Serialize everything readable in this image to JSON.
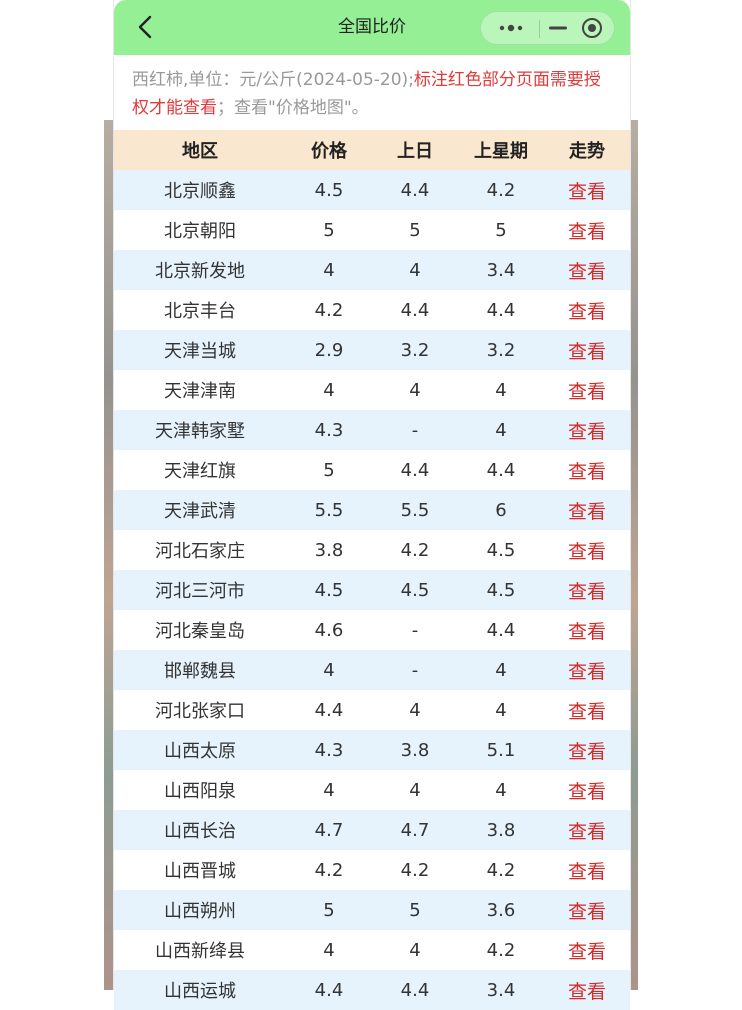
{
  "nav": {
    "title": "全国比价"
  },
  "notice": {
    "gray_text": "西红柿,单位：元/公斤(2024-05-20);",
    "red_text": "标注红色部分页面需要授权才能查看",
    "tail_text": "；查看\"价格地图\"。"
  },
  "icons": {
    "back": "chevron-left-icon",
    "more": "more-dots-icon",
    "minimize": "minimize-icon",
    "close": "target-circle-icon"
  },
  "colors": {
    "nav_bg": "#95f095",
    "header_bg": "#f9e7cf",
    "row_alt_bg": "#e6f3fc",
    "link_red": "#d42a2a"
  },
  "table": {
    "headers": [
      "地区",
      "价格",
      "上日",
      "上星期",
      "走势"
    ],
    "rows": [
      {
        "region": "北京顺鑫",
        "price": "4.5",
        "prev": "4.4",
        "week": "4.2",
        "trend": "查看"
      },
      {
        "region": "北京朝阳",
        "price": "5",
        "prev": "5",
        "week": "5",
        "trend": "查看"
      },
      {
        "region": "北京新发地",
        "price": "4",
        "prev": "4",
        "week": "3.4",
        "trend": "查看"
      },
      {
        "region": "北京丰台",
        "price": "4.2",
        "prev": "4.4",
        "week": "4.4",
        "trend": "查看"
      },
      {
        "region": "天津当城",
        "price": "2.9",
        "prev": "3.2",
        "week": "3.2",
        "trend": "查看"
      },
      {
        "region": "天津津南",
        "price": "4",
        "prev": "4",
        "week": "4",
        "trend": "查看"
      },
      {
        "region": "天津韩家墅",
        "price": "4.3",
        "prev": "-",
        "week": "4",
        "trend": "查看"
      },
      {
        "region": "天津红旗",
        "price": "5",
        "prev": "4.4",
        "week": "4.4",
        "trend": "查看"
      },
      {
        "region": "天津武清",
        "price": "5.5",
        "prev": "5.5",
        "week": "6",
        "trend": "查看"
      },
      {
        "region": "河北石家庄",
        "price": "3.8",
        "prev": "4.2",
        "week": "4.5",
        "trend": "查看"
      },
      {
        "region": "河北三河市",
        "price": "4.5",
        "prev": "4.5",
        "week": "4.5",
        "trend": "查看"
      },
      {
        "region": "河北秦皇岛",
        "price": "4.6",
        "prev": "-",
        "week": "4.4",
        "trend": "查看"
      },
      {
        "region": "邯郸魏县",
        "price": "4",
        "prev": "-",
        "week": "4",
        "trend": "查看"
      },
      {
        "region": "河北张家口",
        "price": "4.4",
        "prev": "4",
        "week": "4",
        "trend": "查看"
      },
      {
        "region": "山西太原",
        "price": "4.3",
        "prev": "3.8",
        "week": "5.1",
        "trend": "查看"
      },
      {
        "region": "山西阳泉",
        "price": "4",
        "prev": "4",
        "week": "4",
        "trend": "查看"
      },
      {
        "region": "山西长治",
        "price": "4.7",
        "prev": "4.7",
        "week": "3.8",
        "trend": "查看"
      },
      {
        "region": "山西晋城",
        "price": "4.2",
        "prev": "4.2",
        "week": "4.2",
        "trend": "查看"
      },
      {
        "region": "山西朔州",
        "price": "5",
        "prev": "5",
        "week": "3.6",
        "trend": "查看"
      },
      {
        "region": "山西新绛县",
        "price": "4",
        "prev": "4",
        "week": "4.2",
        "trend": "查看"
      },
      {
        "region": "山西运城",
        "price": "4.4",
        "prev": "4.4",
        "week": "3.4",
        "trend": "查看"
      }
    ]
  }
}
